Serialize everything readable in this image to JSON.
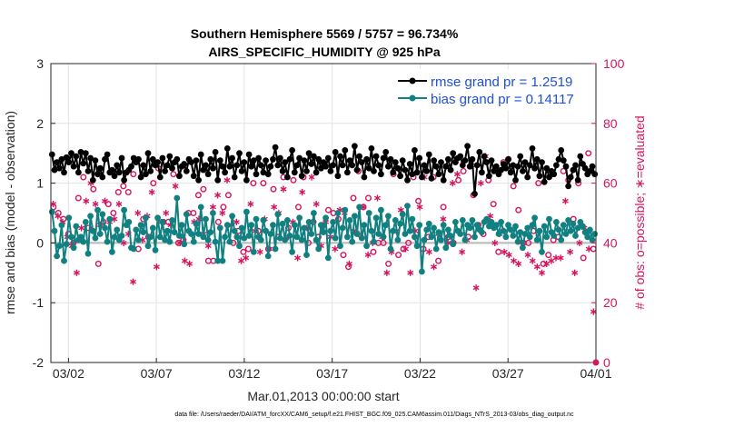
{
  "chart_data": {
    "type": "line",
    "title": "Southern Hemisphere 5569 / 5757 = 96.734%",
    "subtitle": "AIRS_SPECIFIC_HUMIDITY @ 925 hPa",
    "xlabel": "Mar.01,2013 00:00:00 start",
    "ylabel_left": "rmse and bias (model - observation)",
    "ylabel_right": "# of obs: o=possible; ∗=evaluated",
    "footnote": "data file: /Users/raeder/DAI/ATM_forcXX/CAM6_setup/f.e21.FHIST_BGC.f09_025.CAM6assim.011/Diags_NTrS_2013-03/obs_diag_output.nc",
    "x_ticks": [
      "03/02",
      "03/07",
      "03/12",
      "03/17",
      "03/22",
      "03/27",
      "04/01"
    ],
    "x_tick_days": [
      1,
      6,
      11,
      16,
      21,
      26,
      31
    ],
    "xlim": [
      0,
      31
    ],
    "ylim_left": [
      -2,
      3
    ],
    "y_ticks_left": [
      "-2",
      "-1",
      "0",
      "1",
      "2",
      "3"
    ],
    "ylim_right": [
      0,
      100
    ],
    "y_ticks_right": [
      "0",
      "20",
      "40",
      "60",
      "80",
      "100"
    ],
    "grid": true,
    "legend_position": "top-right",
    "colors": {
      "rmse": "#000000",
      "bias": "#108080",
      "obs": "#d5155f",
      "zero_line": "#b8b8b8"
    },
    "series": [
      {
        "name": "rmse grand pr = 1.2519",
        "axis": "left",
        "color": "#000000",
        "values": [
          1.48,
          1.22,
          1.35,
          1.25,
          1.4,
          1.18,
          1.43,
          1.35,
          1.5,
          1.28,
          1.45,
          1.18,
          1.52,
          1.33,
          1.5,
          1.2,
          1.42,
          1.05,
          1.38,
          1.15,
          1.25,
          1.1,
          1.4,
          1.48,
          1.18,
          1.22,
          1.12,
          1.3,
          1.18,
          1.42,
          1.05,
          1.18,
          1.22,
          1.28,
          1.42,
          1.35,
          1.4,
          1.1,
          1.3,
          1.15,
          1.5,
          1.2,
          1.4,
          1.3,
          1.35,
          1.1,
          1.42,
          1.2,
          1.3,
          1.45,
          1.25,
          1.35,
          1.4,
          1.12,
          1.28,
          1.32,
          1.2,
          1.4,
          1.35,
          1.12,
          1.38,
          1.05,
          1.48,
          1.22,
          1.3,
          1.15,
          1.4,
          1.25,
          1.52,
          1.05,
          1.38,
          1.28,
          1.18,
          1.58,
          1.28,
          1.42,
          1.1,
          1.3,
          1.5,
          1.2,
          1.35,
          1.05,
          1.48,
          1.28,
          1.38,
          1.15,
          1.42,
          1.3,
          1.18,
          1.38,
          1.15,
          1.28,
          1.4,
          1.6,
          1.3,
          1.42,
          1.2,
          1.35,
          1.1,
          1.4,
          1.55,
          1.18,
          1.3,
          1.42,
          1.12,
          1.38,
          1.2,
          1.5,
          1.32,
          1.45,
          1.18,
          1.4,
          1.25,
          1.35,
          1.28,
          1.42,
          1.2,
          1.3,
          1.52,
          1.12,
          1.45,
          1.3,
          1.55,
          1.18,
          1.38,
          1.3,
          1.62,
          1.22,
          1.45,
          1.35,
          1.1,
          1.4,
          1.25,
          1.58,
          1.2,
          1.45,
          1.3,
          1.15,
          1.42,
          1.52,
          1.28,
          1.4,
          1.18,
          1.35,
          1.25,
          1.12,
          1.38,
          1.22,
          1.05,
          1.32,
          1.15,
          1.55,
          1.18,
          1.42,
          1.1,
          1.3,
          1.2,
          1.48,
          1.08,
          1.38,
          1.28,
          1.15,
          1.35,
          1.05,
          1.28,
          1.4,
          1.22,
          1.5,
          1.35,
          1.42,
          1.45,
          1.3,
          1.38,
          1.62,
          1.28,
          1.4,
          0.82,
          1.3,
          1.52,
          1.18,
          1.45,
          1.35,
          1.12,
          1.38,
          1.2,
          1.28,
          1.15,
          1.22,
          1.32,
          1.25,
          1.4,
          1.18,
          1.3,
          1.05,
          1.28,
          1.45,
          1.2,
          1.35,
          1.1,
          1.3,
          1.58,
          1.25,
          1.4,
          1.12,
          1.35,
          1.02,
          1.25,
          1.1,
          1.2,
          1.15,
          1.3,
          1.4,
          1.55,
          1.38,
          1.28,
          0.95,
          1.1,
          1.22,
          1.3,
          1.05,
          1.45,
          1.32,
          1.25,
          1.15,
          1.2,
          1.28,
          1.15
        ]
      },
      {
        "name": "bias grand pr = 0.14117",
        "axis": "left",
        "color": "#108080",
        "values": [
          0.52,
          0.2,
          -0.22,
          -0.05,
          0.3,
          -0.3,
          -0.02,
          0.42,
          0.1,
          -0.08,
          0.28,
          0.05,
          0.1,
          0.02,
          0.35,
          -0.18,
          0.45,
          0.2,
          0.08,
          0.55,
          0.15,
          0.48,
          0.25,
          0.02,
          0.4,
          -0.15,
          0.1,
          0.22,
          0.05,
          0.12,
          0.55,
          0.3,
          0.35,
          -0.08,
          -0.1,
          0.22,
          0.05,
          0.3,
          0.18,
          0.42,
          -0.05,
          0.1,
          0.25,
          -0.12,
          0.42,
          0.1,
          0.35,
          0.05,
          0.2,
          0.02,
          0.38,
          0.18,
          0.75,
          0.12,
          0.3,
          -0.02,
          0.48,
          0.2,
          0.15,
          0.02,
          0.32,
          0.15,
          0.6,
          0.1,
          0.4,
          0.05,
          0.18,
          0.5,
          0.02,
          -0.3,
          0.25,
          -0.3,
          0.1,
          0.3,
          0.02,
          0.45,
          0.2,
          0.1,
          -0.05,
          0.25,
          0.08,
          0.52,
          0.12,
          0.3,
          -0.15,
          0.4,
          0.1,
          0.05,
          0.38,
          0.2,
          -0.22,
          0.15,
          0.3,
          -0.1,
          0.48,
          0.08,
          0.32,
          0.05,
          0.38,
          0.12,
          -0.15,
          0.3,
          0.1,
          0.42,
          0.05,
          0.25,
          -0.2,
          0.35,
          0.15,
          0.5,
          0.05,
          -0.1,
          0.3,
          0.18,
          0.42,
          -0.25,
          0.2,
          0.35,
          0.08,
          0.5,
          -0.05,
          0.25,
          0.55,
          0.1,
          0.38,
          0.02,
          0.45,
          0.15,
          0.6,
          0.08,
          0.3,
          -0.05,
          0.5,
          0.2,
          0.02,
          0.42,
          0.15,
          0.55,
          0.1,
          0.3,
          0.45,
          -0.1,
          0.2,
          0.38,
          0.05,
          0.32,
          0.48,
          0.15,
          0.62,
          0.2,
          0.4,
          0.1,
          -0.05,
          0.3,
          -0.48,
          0.05,
          0.22,
          0.32,
          0.1,
          0.25,
          -0.1,
          0.18,
          0.05,
          0.3,
          -0.08,
          0.22,
          0.12,
          -0.02,
          0.35,
          0.2,
          0.15,
          0.38,
          0.05,
          0.3,
          0.25,
          0.38,
          0.1,
          0.3,
          0.22,
          0.18,
          0.35,
          0.4,
          0.28,
          0.35,
          0.25,
          0.3,
          0.15,
          0.35,
          0.2,
          0.1,
          0.3,
          0.22,
          0.12,
          0.28,
          0.02,
          0.18,
          -0.08,
          0.15,
          0.25,
          0.1,
          0.3,
          0.42,
          0.05,
          0.2,
          -0.15,
          0.28,
          0.1,
          0.4,
          0.18,
          0.12,
          0.35,
          0.22,
          0.05,
          0.3,
          0.15,
          0.38,
          0.2,
          0.32,
          0.12,
          0.25,
          0.35,
          0.28,
          0.18,
          0.1,
          0.22,
          0.05,
          0.15
        ]
      },
      {
        "name": "# of obs possible",
        "axis": "right",
        "marker": "circle",
        "color": "#d5155f",
        "values": [
          52,
          50,
          48,
          43,
          40,
          55,
          62,
          45,
          58,
          33,
          47,
          53,
          50,
          57,
          59,
          57,
          63,
          38,
          48,
          42,
          60,
          65,
          47,
          47,
          63,
          40,
          41,
          50,
          50,
          56,
          58,
          34,
          34,
          47,
          52,
          56,
          40,
          44,
          37,
          38,
          60,
          44,
          60,
          38,
          58,
          42,
          62,
          45,
          61,
          52,
          62,
          40,
          47,
          42,
          46,
          51,
          50,
          48,
          36,
          32,
          55,
          64,
          52,
          55,
          37,
          40,
          40,
          33,
          63,
          36,
          38,
          40,
          62,
          54,
          38,
          42,
          62,
          34,
          52,
          42,
          40,
          61,
          64,
          42,
          56,
          46,
          43,
          61,
          53,
          37,
          67,
          68,
          59,
          51,
          40,
          40,
          44,
          60,
          33,
          36,
          41,
          42,
          64,
          61,
          48,
          60,
          35,
          70,
          38
        ]
      },
      {
        "name": "# of obs evaluated",
        "axis": "right",
        "marker": "asterisk",
        "color": "#d5155f",
        "values": [
          53,
          49,
          47,
          42,
          39,
          30,
          45,
          54,
          60,
          53,
          46,
          54,
          47,
          48,
          53,
          40,
          43,
          27,
          50,
          41,
          49,
          57,
          32,
          47,
          50,
          46,
          59,
          40,
          34,
          33,
          47,
          48,
          43,
          39,
          52,
          56,
          50,
          61,
          46,
          47,
          34,
          35,
          53,
          44,
          37,
          48,
          38,
          52,
          50,
          58,
          42,
          47,
          35,
          57,
          45,
          62,
          53,
          39,
          47,
          42,
          38,
          51,
          50,
          33,
          44,
          43,
          52,
          36,
          40,
          55,
          42,
          30,
          37,
          44,
          51,
          38,
          30,
          44,
          52,
          62,
          37,
          32,
          43,
          48,
          40,
          60,
          63,
          37,
          41,
          66,
          25,
          60,
          69,
          49,
          40,
          43,
          37,
          36,
          34,
          33,
          40,
          36,
          34,
          32,
          30,
          33,
          34,
          35,
          35,
          54,
          37,
          30,
          40,
          45,
          38,
          17
        ]
      }
    ]
  }
}
